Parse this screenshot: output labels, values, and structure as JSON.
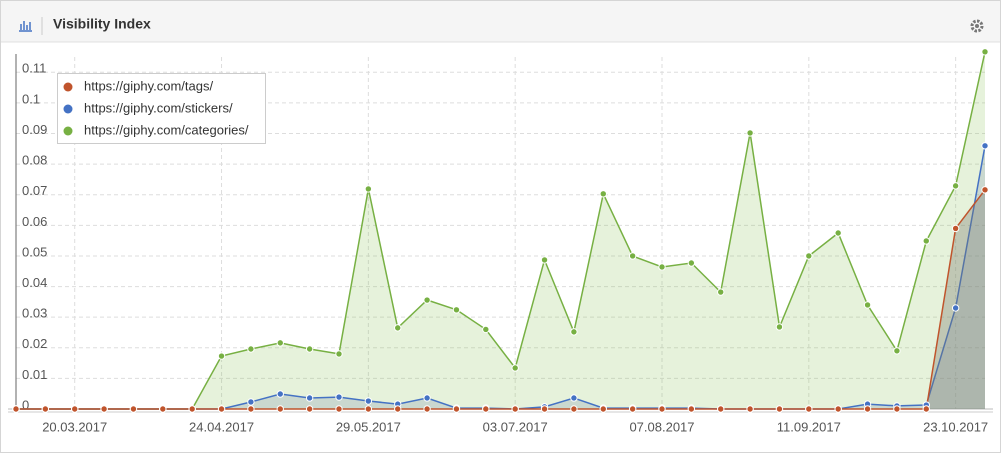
{
  "chart_data": {
    "type": "line",
    "title": "Visibility Index",
    "categories": [
      null,
      null,
      "20.03.2017",
      null,
      null,
      null,
      null,
      "24.04.2017",
      null,
      null,
      null,
      null,
      "29.05.2017",
      null,
      null,
      null,
      null,
      "03.07.2017",
      null,
      null,
      null,
      null,
      "07.08.2017",
      null,
      null,
      null,
      null,
      "11.09.2017",
      null,
      null,
      null,
      null,
      "23.10.2017",
      null
    ],
    "series": [
      {
        "name": "https://giphy.com/tags/",
        "color": "#c0542c",
        "values": [
          0,
          0,
          0,
          0,
          0,
          0,
          0,
          0,
          0,
          0,
          0,
          0,
          0,
          0,
          0,
          0,
          0,
          0,
          0,
          0,
          0,
          0,
          0,
          0,
          0,
          0,
          0,
          0,
          0,
          0,
          0,
          0,
          0.059,
          0.0716
        ]
      },
      {
        "name": "https://giphy.com/stickers/",
        "color": "#4472c4",
        "values": [
          0,
          0,
          0,
          0,
          0,
          0,
          0,
          0,
          0.0023,
          0.0049,
          0.0036,
          0.0039,
          0.0026,
          0.0016,
          0.0036,
          0.0003,
          0.0003,
          0,
          0.0007,
          0.0036,
          0.0003,
          0.0003,
          0.0003,
          0.0003,
          0,
          0,
          0,
          0,
          0,
          0.0016,
          0.001,
          0.0013,
          0.033,
          0.086
        ]
      },
      {
        "name": "https://giphy.com/categories/",
        "color": "#77b043",
        "values": [
          0,
          0,
          0,
          0,
          0,
          0,
          0,
          0.0173,
          0.0196,
          0.0216,
          0.0196,
          0.018,
          0.0719,
          0.0265,
          0.0356,
          0.0324,
          0.026,
          0.0134,
          0.0487,
          0.0252,
          0.0703,
          0.05,
          0.0464,
          0.0477,
          0.0382,
          0.0902,
          0.0268,
          0.05,
          0.0575,
          0.034,
          0.019,
          0.0549,
          0.0729,
          0.1167
        ]
      }
    ],
    "ylim": [
      0,
      0.115
    ],
    "yticks": [
      0,
      0.01,
      0.02,
      0.03,
      0.04,
      0.05,
      0.06,
      0.07,
      0.08,
      0.09,
      0.1,
      0.11
    ],
    "grid": true,
    "legend": "top-left"
  }
}
